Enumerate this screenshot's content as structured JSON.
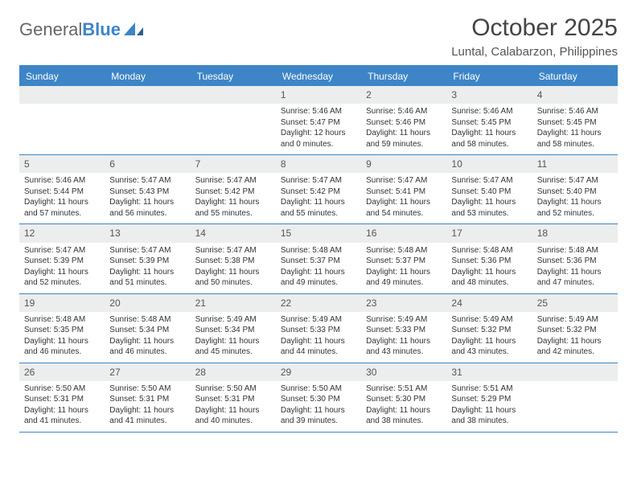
{
  "logo": {
    "part1": "General",
    "part2": "Blue"
  },
  "title": "October 2025",
  "location": "Luntal, Calabarzon, Philippines",
  "colors": {
    "accent": "#3d85c6",
    "header_bg": "#eceded",
    "text": "#333333"
  },
  "dow": [
    "Sunday",
    "Monday",
    "Tuesday",
    "Wednesday",
    "Thursday",
    "Friday",
    "Saturday"
  ],
  "weeks": [
    [
      null,
      null,
      null,
      {
        "n": "1",
        "sr": "Sunrise: 5:46 AM",
        "ss": "Sunset: 5:47 PM",
        "d1": "Daylight: 12 hours",
        "d2": "and 0 minutes."
      },
      {
        "n": "2",
        "sr": "Sunrise: 5:46 AM",
        "ss": "Sunset: 5:46 PM",
        "d1": "Daylight: 11 hours",
        "d2": "and 59 minutes."
      },
      {
        "n": "3",
        "sr": "Sunrise: 5:46 AM",
        "ss": "Sunset: 5:45 PM",
        "d1": "Daylight: 11 hours",
        "d2": "and 58 minutes."
      },
      {
        "n": "4",
        "sr": "Sunrise: 5:46 AM",
        "ss": "Sunset: 5:45 PM",
        "d1": "Daylight: 11 hours",
        "d2": "and 58 minutes."
      }
    ],
    [
      {
        "n": "5",
        "sr": "Sunrise: 5:46 AM",
        "ss": "Sunset: 5:44 PM",
        "d1": "Daylight: 11 hours",
        "d2": "and 57 minutes."
      },
      {
        "n": "6",
        "sr": "Sunrise: 5:47 AM",
        "ss": "Sunset: 5:43 PM",
        "d1": "Daylight: 11 hours",
        "d2": "and 56 minutes."
      },
      {
        "n": "7",
        "sr": "Sunrise: 5:47 AM",
        "ss": "Sunset: 5:42 PM",
        "d1": "Daylight: 11 hours",
        "d2": "and 55 minutes."
      },
      {
        "n": "8",
        "sr": "Sunrise: 5:47 AM",
        "ss": "Sunset: 5:42 PM",
        "d1": "Daylight: 11 hours",
        "d2": "and 55 minutes."
      },
      {
        "n": "9",
        "sr": "Sunrise: 5:47 AM",
        "ss": "Sunset: 5:41 PM",
        "d1": "Daylight: 11 hours",
        "d2": "and 54 minutes."
      },
      {
        "n": "10",
        "sr": "Sunrise: 5:47 AM",
        "ss": "Sunset: 5:40 PM",
        "d1": "Daylight: 11 hours",
        "d2": "and 53 minutes."
      },
      {
        "n": "11",
        "sr": "Sunrise: 5:47 AM",
        "ss": "Sunset: 5:40 PM",
        "d1": "Daylight: 11 hours",
        "d2": "and 52 minutes."
      }
    ],
    [
      {
        "n": "12",
        "sr": "Sunrise: 5:47 AM",
        "ss": "Sunset: 5:39 PM",
        "d1": "Daylight: 11 hours",
        "d2": "and 52 minutes."
      },
      {
        "n": "13",
        "sr": "Sunrise: 5:47 AM",
        "ss": "Sunset: 5:39 PM",
        "d1": "Daylight: 11 hours",
        "d2": "and 51 minutes."
      },
      {
        "n": "14",
        "sr": "Sunrise: 5:47 AM",
        "ss": "Sunset: 5:38 PM",
        "d1": "Daylight: 11 hours",
        "d2": "and 50 minutes."
      },
      {
        "n": "15",
        "sr": "Sunrise: 5:48 AM",
        "ss": "Sunset: 5:37 PM",
        "d1": "Daylight: 11 hours",
        "d2": "and 49 minutes."
      },
      {
        "n": "16",
        "sr": "Sunrise: 5:48 AM",
        "ss": "Sunset: 5:37 PM",
        "d1": "Daylight: 11 hours",
        "d2": "and 49 minutes."
      },
      {
        "n": "17",
        "sr": "Sunrise: 5:48 AM",
        "ss": "Sunset: 5:36 PM",
        "d1": "Daylight: 11 hours",
        "d2": "and 48 minutes."
      },
      {
        "n": "18",
        "sr": "Sunrise: 5:48 AM",
        "ss": "Sunset: 5:36 PM",
        "d1": "Daylight: 11 hours",
        "d2": "and 47 minutes."
      }
    ],
    [
      {
        "n": "19",
        "sr": "Sunrise: 5:48 AM",
        "ss": "Sunset: 5:35 PM",
        "d1": "Daylight: 11 hours",
        "d2": "and 46 minutes."
      },
      {
        "n": "20",
        "sr": "Sunrise: 5:48 AM",
        "ss": "Sunset: 5:34 PM",
        "d1": "Daylight: 11 hours",
        "d2": "and 46 minutes."
      },
      {
        "n": "21",
        "sr": "Sunrise: 5:49 AM",
        "ss": "Sunset: 5:34 PM",
        "d1": "Daylight: 11 hours",
        "d2": "and 45 minutes."
      },
      {
        "n": "22",
        "sr": "Sunrise: 5:49 AM",
        "ss": "Sunset: 5:33 PM",
        "d1": "Daylight: 11 hours",
        "d2": "and 44 minutes."
      },
      {
        "n": "23",
        "sr": "Sunrise: 5:49 AM",
        "ss": "Sunset: 5:33 PM",
        "d1": "Daylight: 11 hours",
        "d2": "and 43 minutes."
      },
      {
        "n": "24",
        "sr": "Sunrise: 5:49 AM",
        "ss": "Sunset: 5:32 PM",
        "d1": "Daylight: 11 hours",
        "d2": "and 43 minutes."
      },
      {
        "n": "25",
        "sr": "Sunrise: 5:49 AM",
        "ss": "Sunset: 5:32 PM",
        "d1": "Daylight: 11 hours",
        "d2": "and 42 minutes."
      }
    ],
    [
      {
        "n": "26",
        "sr": "Sunrise: 5:50 AM",
        "ss": "Sunset: 5:31 PM",
        "d1": "Daylight: 11 hours",
        "d2": "and 41 minutes."
      },
      {
        "n": "27",
        "sr": "Sunrise: 5:50 AM",
        "ss": "Sunset: 5:31 PM",
        "d1": "Daylight: 11 hours",
        "d2": "and 41 minutes."
      },
      {
        "n": "28",
        "sr": "Sunrise: 5:50 AM",
        "ss": "Sunset: 5:31 PM",
        "d1": "Daylight: 11 hours",
        "d2": "and 40 minutes."
      },
      {
        "n": "29",
        "sr": "Sunrise: 5:50 AM",
        "ss": "Sunset: 5:30 PM",
        "d1": "Daylight: 11 hours",
        "d2": "and 39 minutes."
      },
      {
        "n": "30",
        "sr": "Sunrise: 5:51 AM",
        "ss": "Sunset: 5:30 PM",
        "d1": "Daylight: 11 hours",
        "d2": "and 38 minutes."
      },
      {
        "n": "31",
        "sr": "Sunrise: 5:51 AM",
        "ss": "Sunset: 5:29 PM",
        "d1": "Daylight: 11 hours",
        "d2": "and 38 minutes."
      },
      null
    ]
  ]
}
